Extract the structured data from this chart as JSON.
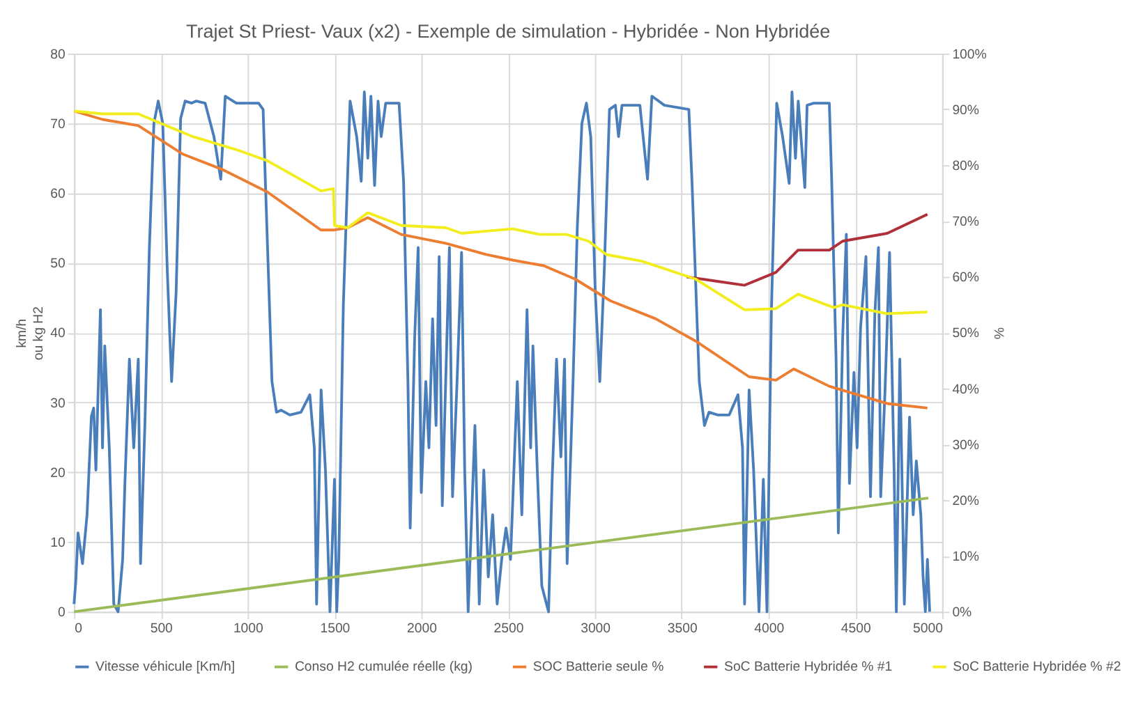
{
  "chart_data": {
    "type": "line",
    "title": "Trajet St Priest- Vaux (x2) - Exemple de simulation - Hybridée - Non Hybridée",
    "ylabel": "km/h\nou kg H2",
    "y2label": "%",
    "xlim": [
      0,
      5000
    ],
    "xticks": [
      0,
      500,
      1000,
      1500,
      2000,
      2500,
      3000,
      3500,
      4000,
      4500,
      5000
    ],
    "ylim": [
      0,
      80
    ],
    "yticks": [
      0,
      10,
      20,
      30,
      40,
      50,
      60,
      70,
      80
    ],
    "y2lim": [
      0,
      100
    ],
    "y2ticks": [
      {
        "value": 0,
        "label": "0%"
      },
      {
        "value": 10,
        "label": "10%"
      },
      {
        "value": 20,
        "label": "20%"
      },
      {
        "value": 30,
        "label": "30%"
      },
      {
        "value": 40,
        "label": "40%"
      },
      {
        "value": 50,
        "label": "50%"
      },
      {
        "value": 60,
        "label": "60%"
      },
      {
        "value": 70,
        "label": "70%"
      },
      {
        "value": 80,
        "label": "80%"
      },
      {
        "value": 90,
        "label": "90%"
      },
      {
        "value": 100,
        "label": "100%"
      }
    ],
    "grid": true,
    "legend": "bottom",
    "marker": "none",
    "line_style": "solid",
    "series": [
      {
        "name": "Vitesse véhicule [Km/h]",
        "color": "#4a7ebb",
        "x": [
          0,
          10,
          23,
          49,
          75,
          100,
          113,
          126,
          152,
          164,
          177,
          203,
          229,
          254,
          280,
          293,
          319,
          344,
          370,
          383,
          408,
          434,
          460,
          485,
          511,
          537,
          562,
          588,
          614,
          640,
          678,
          704,
          755,
          806,
          845,
          871,
          935,
          1063,
          1089,
          1102,
          1140,
          1166,
          1192,
          1243,
          1307,
          1358,
          1384,
          1397,
          1423,
          1448,
          1474,
          1500,
          1513,
          1525,
          1551,
          1590,
          1628,
          1654,
          1672,
          1692,
          1710,
          1731,
          1751,
          1769,
          1795,
          1872,
          1898,
          1923,
          1936,
          1962,
          1982,
          2000,
          2026,
          2044,
          2065,
          2085,
          2103,
          2121,
          2142,
          2162,
          2180,
          2206,
          2232,
          2250,
          2270,
          2309,
          2334,
          2360,
          2386,
          2411,
          2437,
          2463,
          2488,
          2514,
          2553,
          2579,
          2609,
          2630,
          2643,
          2668,
          2694,
          2733,
          2753,
          2779,
          2804,
          2825,
          2840,
          2874,
          2899,
          2925,
          2951,
          2976,
          3002,
          3028,
          3054,
          3084,
          3118,
          3136,
          3156,
          3259,
          3303,
          3328,
          3400,
          3541,
          3559,
          3601,
          3631,
          3657,
          3708,
          3773,
          3824,
          3850,
          3862,
          3888,
          3914,
          3945,
          3970,
          3991,
          4016,
          4047,
          4081,
          4119,
          4135,
          4155,
          4171,
          4209,
          4222,
          4260,
          4350,
          4363,
          4389,
          4402,
          4427,
          4448,
          4466,
          4492,
          4510,
          4530,
          4561,
          4587,
          4612,
          4633,
          4646,
          4671,
          4697,
          4723,
          4736,
          4756,
          4782,
          4812,
          4833,
          4851,
          4877,
          4890,
          4903,
          4915,
          4928
        ],
        "values": [
          1.1,
          4.3,
          11.3,
          6.9,
          13.9,
          28,
          29.2,
          20.3,
          43.3,
          23.5,
          38.1,
          23.5,
          1.1,
          0,
          7.5,
          18.4,
          36.2,
          23.5,
          36.2,
          6.9,
          26.7,
          52.2,
          70,
          73.2,
          70,
          49,
          33,
          45.8,
          70.7,
          73.2,
          72.9,
          73.2,
          72.9,
          68.1,
          62,
          73.9,
          72.9,
          72.9,
          72,
          61.7,
          33,
          28.6,
          28.9,
          28.2,
          28.6,
          31.1,
          23.5,
          1.1,
          31.8,
          20.3,
          0,
          19,
          0,
          7.5,
          43.9,
          73.2,
          68.1,
          61.7,
          74.5,
          65,
          73.9,
          61.1,
          73.2,
          68.1,
          72.9,
          72.9,
          61.7,
          33,
          12,
          39.4,
          52.2,
          17.1,
          33,
          23.5,
          42,
          26.7,
          50.9,
          15.2,
          34.3,
          52.2,
          16.5,
          33,
          51.5,
          20.3,
          0,
          26.7,
          1.1,
          20.3,
          5,
          13.9,
          1.1,
          7.5,
          12,
          7.5,
          33,
          13.9,
          43.3,
          23.5,
          38.1,
          20.3,
          3.7,
          0,
          18.4,
          36.2,
          22.2,
          36.2,
          6.9,
          33,
          55.4,
          70,
          72.9,
          68.1,
          45.8,
          33,
          49,
          72,
          72.6,
          68.1,
          72.6,
          72.6,
          62,
          73.9,
          72.6,
          72,
          61.7,
          33,
          26.7,
          28.6,
          28.2,
          28.2,
          31.1,
          23.5,
          1.1,
          31.8,
          20.3,
          0,
          19,
          0,
          42.6,
          72.9,
          68.1,
          61.4,
          74.5,
          65,
          73.2,
          60.8,
          72.6,
          72.9,
          72.9,
          62.4,
          36.2,
          11.3,
          39.4,
          54.1,
          18.4,
          34.3,
          23.5,
          40.7,
          50.9,
          16.5,
          42.6,
          52.2,
          16.5,
          31.8,
          51.5,
          20.3,
          0,
          36.2,
          1.1,
          27.9,
          13.9,
          21.6,
          13.9,
          5,
          0,
          7.5,
          0
        ]
      },
      {
        "name": "Conso H2 cumulée réelle (kg)",
        "color": "#9bbb59",
        "x": [
          0,
          2500,
          4920
        ],
        "values": [
          0,
          8.3,
          16.3
        ]
      },
      {
        "name": "SOC Batterie seule %",
        "color": "#ed7d31",
        "axis": "y2",
        "x": [
          0,
          164,
          370,
          626,
          857,
          1114,
          1422,
          1499,
          1576,
          1692,
          1884,
          2141,
          2373,
          2527,
          2705,
          2886,
          3090,
          3349,
          3580,
          3888,
          4042,
          4145,
          4350,
          4684,
          4915
        ],
        "values": [
          89.7,
          88.2,
          87.1,
          82,
          79.2,
          75.2,
          68.4,
          68.4,
          68.8,
          70.6,
          67.6,
          66,
          64,
          63,
          62,
          59.6,
          55.7,
          52.5,
          48.5,
          42.1,
          41.5,
          43.5,
          40.4,
          37.3,
          36.5
        ]
      },
      {
        "name": "SoC Batterie Hybridée % #1",
        "color": "#b0303a",
        "axis": "y2",
        "x": [
          3528,
          3862,
          4042,
          4170,
          4350,
          4427,
          4684,
          4915
        ],
        "values": [
          60,
          58.5,
          60.8,
          64.8,
          64.8,
          66.4,
          67.8,
          71.2
        ]
      },
      {
        "name": "SoC Batterie Hybridée % #2",
        "color": "#f2ee1e",
        "axis": "y2",
        "x": [
          0,
          164,
          370,
          678,
          934,
          1114,
          1422,
          1494,
          1500,
          1576,
          1692,
          1884,
          2141,
          2232,
          2373,
          2527,
          2681,
          2835,
          2963,
          3066,
          3272,
          3580,
          3862,
          4042,
          4170,
          4376,
          4427,
          4684,
          4915
        ],
        "values": [
          89.7,
          89.2,
          89.2,
          85.2,
          82.8,
          80.8,
          75.4,
          75.8,
          69.2,
          68.8,
          71.5,
          69.2,
          68.8,
          67.8,
          68.2,
          68.6,
          67.6,
          67.6,
          66.4,
          64,
          62.8,
          59.6,
          54.1,
          54.3,
          56.9,
          54.5,
          55,
          53.4,
          53.7
        ]
      }
    ]
  }
}
